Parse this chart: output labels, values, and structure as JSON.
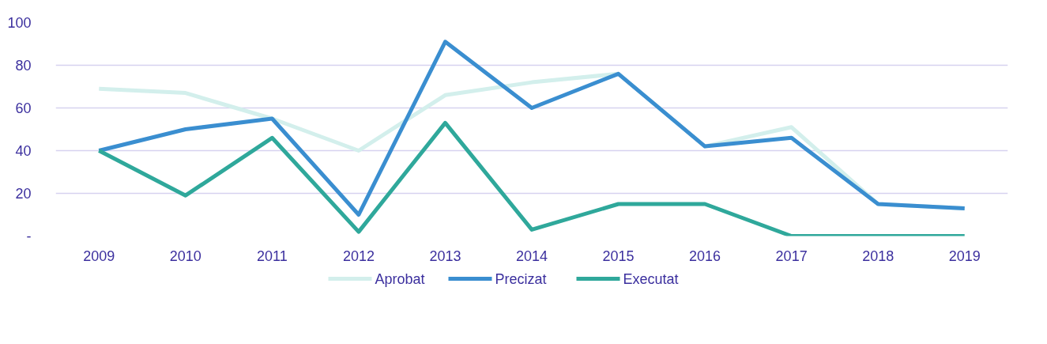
{
  "chart_data": {
    "type": "line",
    "categories": [
      "2009",
      "2010",
      "2011",
      "2012",
      "2013",
      "2014",
      "2015",
      "2016",
      "2017",
      "2018",
      "2019"
    ],
    "series": [
      {
        "name": "Aprobat",
        "color": "#d3efec",
        "values": [
          69,
          67,
          55,
          40,
          66,
          72,
          76,
          42,
          51,
          15,
          13
        ]
      },
      {
        "name": "Precizat",
        "color": "#3a8ed0",
        "values": [
          40,
          50,
          55,
          10,
          91,
          60,
          76,
          42,
          46,
          15,
          13
        ]
      },
      {
        "name": "Executat",
        "color": "#2fa89b",
        "values": [
          40,
          19,
          46,
          2,
          53,
          3,
          15,
          15,
          0,
          0,
          0
        ]
      }
    ],
    "ylim": [
      0,
      100
    ],
    "yticks": [
      {
        "value": 0,
        "label": "-"
      },
      20,
      40,
      60,
      80,
      100
    ],
    "grid": "y",
    "legend": "bottom",
    "marker": "none",
    "line_style": "solid"
  }
}
